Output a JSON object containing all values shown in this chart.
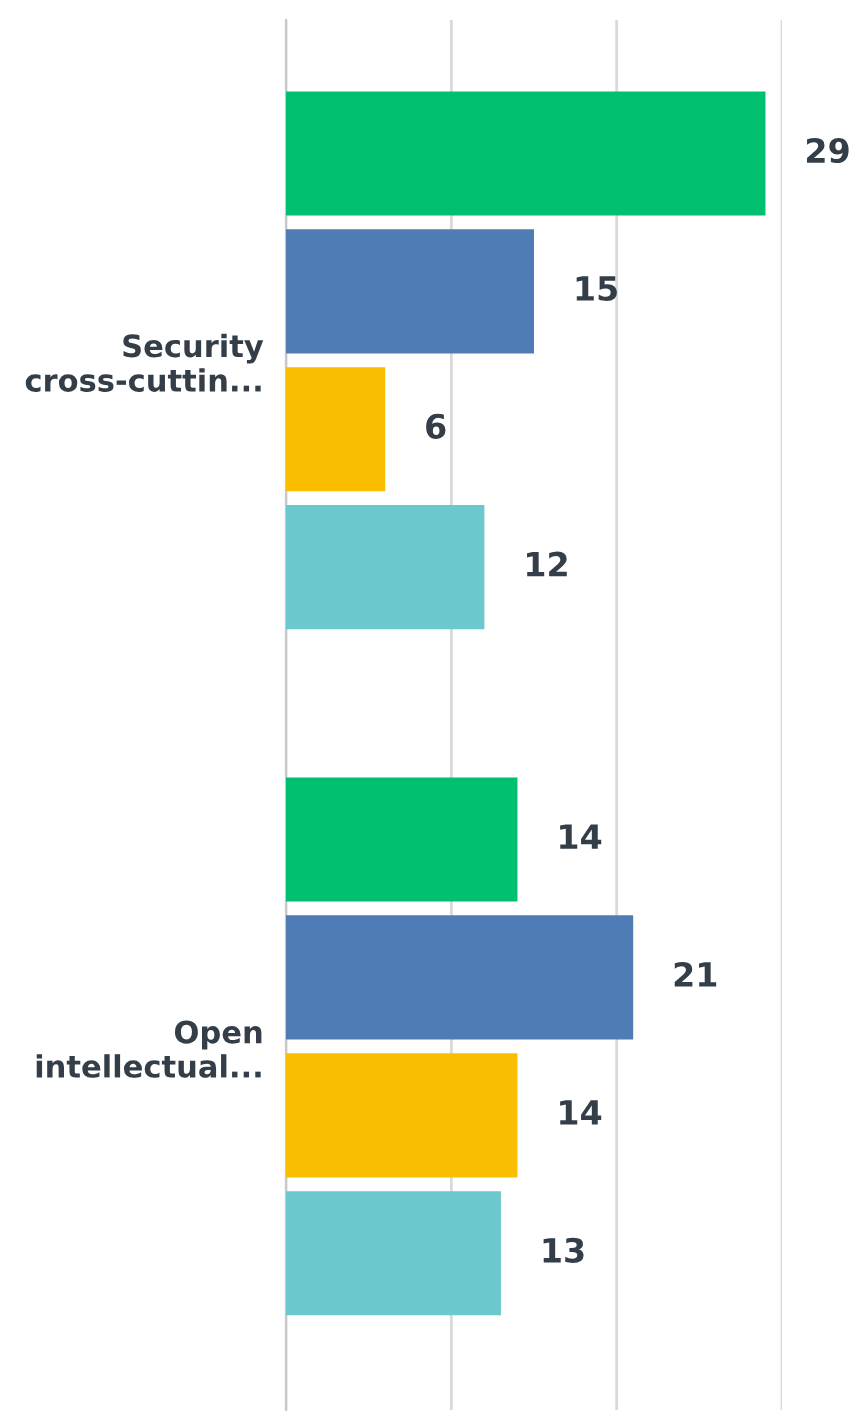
{
  "chart_data": {
    "type": "bar",
    "orientation": "horizontal",
    "categories": [
      "Security\ncross-cuttin...",
      "Open\nintellectual..."
    ],
    "series": [
      {
        "color": "#00bf6f",
        "values": [
          29,
          14
        ]
      },
      {
        "color": "#507cb6",
        "values": [
          15,
          21
        ]
      },
      {
        "color": "#f9be00",
        "values": [
          6,
          14
        ]
      },
      {
        "color": "#6bc8cd",
        "values": [
          12,
          13
        ]
      }
    ],
    "xlim": [
      0,
      30
    ],
    "xticks": [
      {
        "value": 0,
        "label": null
      },
      {
        "value": 10,
        "label": null
      },
      {
        "value": 20,
        "label": null
      },
      {
        "value": 30,
        "label": null
      }
    ],
    "grid": "x",
    "legend": false,
    "tick_labels": "y",
    "data_labels": true
  }
}
